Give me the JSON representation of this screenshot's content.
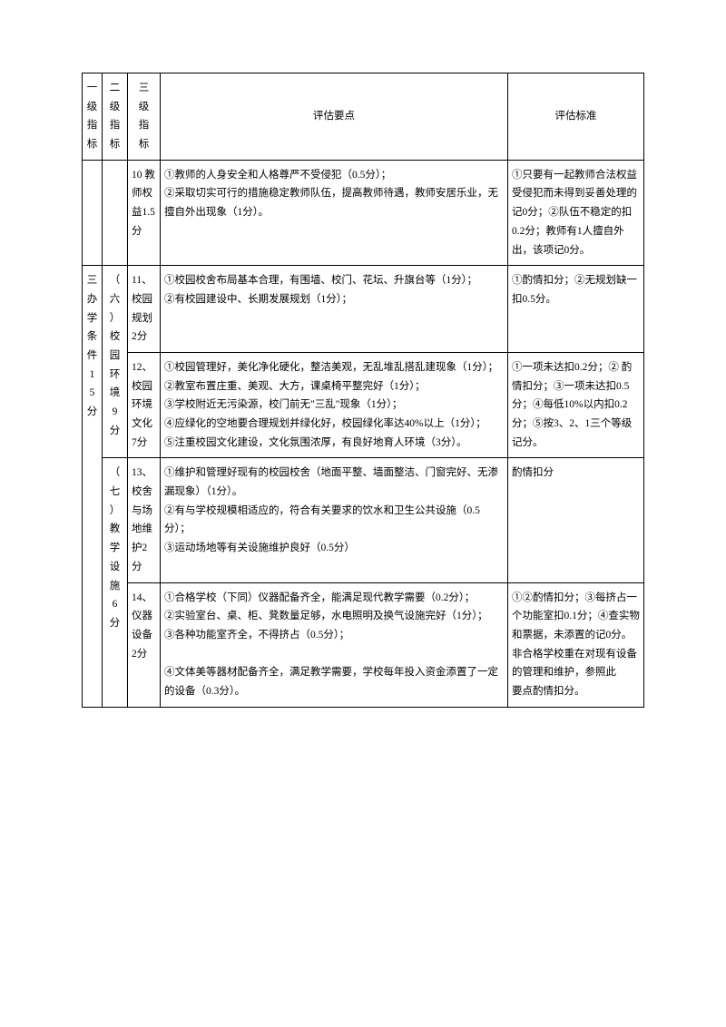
{
  "headers": {
    "col1": "一级指标",
    "col2": "二级指标",
    "col3": "三级指标",
    "col4": "评估要点",
    "col5": "评估标准"
  },
  "rows": [
    {
      "level1": "",
      "level2": "",
      "level3": "10 教师权益1.5分",
      "points": "①教师的人身安全和人格尊严不受侵犯（0.5分）；\n②采取切实可行的措施稳定教师队伍，提高教师待遇，教师安居乐业，无擅自外出现象（1分）。",
      "standard": "①只要有一起教师合法权益受侵犯而未得到妥善处理的记0分；②队伍不稳定的扣0.2分；教师有1人擅自外出，该项记0分。"
    },
    {
      "level1": "三办学条件15分",
      "level2": "（六）校园环境9分",
      "level3": "11、校园规划2分",
      "points": "①校园校舍布局基本合理，有围墙、校门、花坛、升旗台等（1分）；\n②有校园建设中、长期发展规划（1分）；",
      "standard": "①酌情扣分；②无规划缺一\n扣0.5分。",
      "standard_centered": true
    },
    {
      "level3": "12、校园环境文化7分",
      "points": "①校园管理好，美化净化硬化，整洁美观，无乱堆乱搭乱建现象（1分）；\n②教室布置庄重、美观、大方，课桌椅平整完好（1分）；\n③学校附近无污染源，校门前无\"三乱\"现象（1分）；\n④应绿化的空地要合理规划并绿化好，校园绿化率达40%以上（1分）；\n⑤注重校园文化建设，文化氛围浓厚，有良好地育人环境（3分）。",
      "standard": "①一项未达扣0.2分；② 酌情扣分；③一项未达扣0.5分；④每低10%以内扣0.2分；⑤按3、2、1三个等级\n记分。",
      "standard_centered": true
    },
    {
      "level2": "（七）教学设施6分",
      "level3": "13、校舍与场地维护2分",
      "points": "①维护和管理好现有的校园校舍（地面平整、墙面整洁、门窗完好、无渗漏现象）（1分）。\n②有与学校规模相适应的，符合有关要求的饮水和卫生公共设施（0.5分）；\n③运动场地等有关设施维护良好（0.5分）",
      "standard": "酌情扣分"
    },
    {
      "level3": "14、仪器设备2分",
      "points": "①合格学校（下同）仪器配备齐全，能满足现代教学需要（0.2分）；\n②实验室台、桌、柜、凳数量足够，水电照明及换气设施完好（1分）；\n③各种功能室齐全，不得挤占（0.5分）；\n\n④文体美等器材配备齐全，满足教学需要，学校每年投入资金添置了一定的设备（0.3分）。",
      "standard": "①②酌情扣分；③每挤占一个功能室扣0.1分；④查实物和票据，未添置的记0分。非合格学校重在对现有设备的管理和维护，参照此\n要点酌情扣分。"
    }
  ]
}
